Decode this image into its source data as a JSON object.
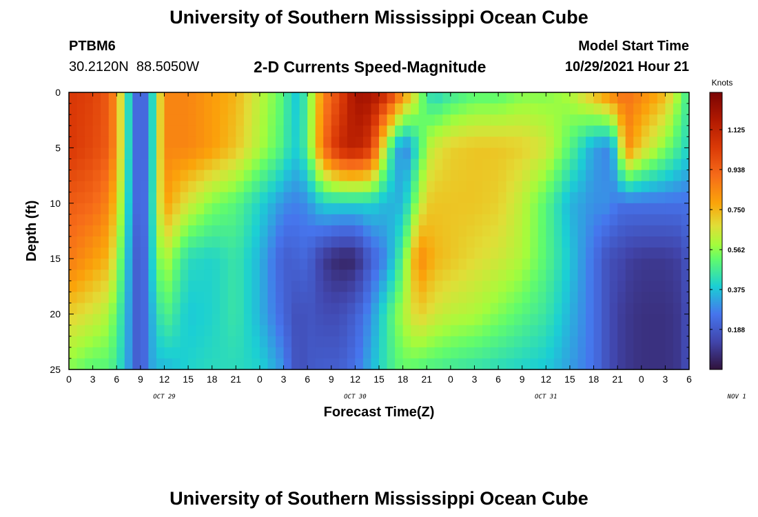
{
  "header": {
    "title": "University of Southern Mississippi Ocean Cube",
    "station_id": "PTBM6",
    "coordinates": "30.2120N  88.5050W",
    "subtitle": "2-D Currents Speed-Magnitude",
    "model_start_label": "Model Start Time",
    "model_start_value": "10/29/2021 Hour 21"
  },
  "footer": {
    "title": "University of Southern Mississippi Ocean Cube"
  },
  "chart_data": {
    "type": "heatmap",
    "title": "2-D Currents Speed-Magnitude",
    "xlabel": "Forecast Time(Z)",
    "ylabel": "Depth (ft)",
    "x_tick_labels": [
      "0",
      "3",
      "6",
      "9",
      "12",
      "15",
      "18",
      "21",
      "0",
      "3",
      "6",
      "9",
      "12",
      "15",
      "18",
      "21",
      "0",
      "3",
      "6",
      "9",
      "12",
      "15",
      "18",
      "21",
      "0",
      "3",
      "6"
    ],
    "x_range_hours": [
      0,
      78
    ],
    "date_labels": [
      {
        "label": "OCT 29",
        "hour": 12
      },
      {
        "label": "OCT 30",
        "hour": 36
      },
      {
        "label": "OCT 31",
        "hour": 60
      },
      {
        "label": "NOV 1",
        "hour": 84
      }
    ],
    "y_ticks": [
      0,
      5,
      10,
      15,
      20,
      25
    ],
    "y_range_ft": [
      0,
      25
    ],
    "y_inverted": true,
    "colorbar": {
      "unit": "Knots",
      "ticks": [
        "1.125",
        "0.938",
        "0.750",
        "0.562",
        "0.375",
        "0.188"
      ],
      "tick_values": [
        1.125,
        0.938,
        0.75,
        0.562,
        0.375,
        0.188
      ],
      "range": [
        0,
        1.3
      ]
    },
    "control_points_hours": [
      0,
      3,
      5,
      6,
      7,
      8,
      9,
      10,
      11,
      12,
      15,
      18,
      21,
      24,
      27,
      28,
      29,
      30,
      32,
      34,
      36,
      38,
      40,
      42,
      44,
      45,
      46,
      48,
      51,
      54,
      57,
      60,
      63,
      66,
      68,
      69,
      70,
      72,
      75,
      77,
      78
    ],
    "control_depths_ft": [
      0,
      5,
      10,
      15,
      20,
      25
    ],
    "values_knots": [
      [
        1.05,
        1.02,
        0.95,
        0.8,
        0.55,
        0.28,
        0.18,
        0.28,
        0.55,
        0.85,
        0.85,
        0.8,
        0.75,
        0.62,
        0.5,
        0.4,
        0.38,
        0.5,
        0.85,
        1.0,
        1.2,
        1.2,
        1.1,
        0.85,
        0.6,
        0.45,
        0.4,
        0.45,
        0.5,
        0.5,
        0.55,
        0.55,
        0.6,
        0.75,
        0.85,
        0.9,
        0.9,
        0.85,
        0.75,
        0.55,
        0.45
      ],
      [
        1.05,
        1.0,
        0.95,
        0.8,
        0.55,
        0.28,
        0.18,
        0.28,
        0.55,
        0.85,
        0.85,
        0.8,
        0.72,
        0.6,
        0.48,
        0.4,
        0.4,
        0.5,
        0.9,
        1.1,
        1.15,
        1.05,
        0.55,
        0.25,
        0.45,
        0.6,
        0.65,
        0.7,
        0.72,
        0.72,
        0.7,
        0.65,
        0.5,
        0.32,
        0.28,
        0.45,
        0.85,
        0.7,
        0.55,
        0.45,
        0.4
      ],
      [
        0.95,
        0.92,
        0.85,
        0.7,
        0.5,
        0.28,
        0.18,
        0.3,
        0.55,
        0.8,
        0.65,
        0.55,
        0.5,
        0.4,
        0.3,
        0.28,
        0.28,
        0.3,
        0.4,
        0.4,
        0.4,
        0.4,
        0.35,
        0.35,
        0.6,
        0.7,
        0.72,
        0.72,
        0.72,
        0.7,
        0.62,
        0.5,
        0.35,
        0.3,
        0.3,
        0.25,
        0.25,
        0.25,
        0.25,
        0.25,
        0.25
      ],
      [
        0.88,
        0.8,
        0.75,
        0.6,
        0.45,
        0.25,
        0.16,
        0.3,
        0.5,
        0.62,
        0.42,
        0.4,
        0.45,
        0.35,
        0.2,
        0.2,
        0.22,
        0.22,
        0.1,
        0.05,
        0.05,
        0.2,
        0.3,
        0.5,
        0.85,
        0.8,
        0.75,
        0.72,
        0.68,
        0.65,
        0.6,
        0.5,
        0.38,
        0.25,
        0.15,
        0.15,
        0.12,
        0.1,
        0.1,
        0.12,
        0.2
      ],
      [
        0.7,
        0.65,
        0.6,
        0.5,
        0.4,
        0.25,
        0.16,
        0.3,
        0.4,
        0.5,
        0.38,
        0.4,
        0.45,
        0.35,
        0.22,
        0.18,
        0.15,
        0.18,
        0.15,
        0.15,
        0.2,
        0.3,
        0.45,
        0.6,
        0.7,
        0.68,
        0.65,
        0.62,
        0.6,
        0.55,
        0.5,
        0.45,
        0.35,
        0.25,
        0.15,
        0.12,
        0.1,
        0.08,
        0.08,
        0.1,
        0.18
      ],
      [
        0.55,
        0.5,
        0.5,
        0.45,
        0.38,
        0.25,
        0.16,
        0.3,
        0.36,
        0.35,
        0.4,
        0.42,
        0.42,
        0.4,
        0.3,
        0.2,
        0.15,
        0.18,
        0.2,
        0.2,
        0.25,
        0.35,
        0.45,
        0.52,
        0.5,
        0.48,
        0.48,
        0.46,
        0.44,
        0.42,
        0.4,
        0.38,
        0.32,
        0.25,
        0.15,
        0.12,
        0.1,
        0.08,
        0.08,
        0.1,
        0.18
      ]
    ]
  }
}
